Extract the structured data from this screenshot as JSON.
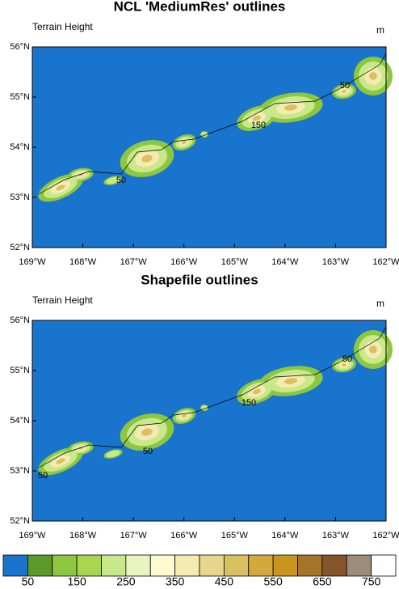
{
  "panels": [
    {
      "title": "NCL 'MediumRes' outlines",
      "left_label": "Terrain Height",
      "right_label": "m",
      "y_labels": [
        "56°N",
        "55°N",
        "54°N",
        "53°N",
        "52°N"
      ],
      "x_labels": [
        "169°W",
        "168°W",
        "167°W",
        "166°W",
        "165°W",
        "164°W",
        "163°W",
        "162°W"
      ],
      "contour_labels": [
        "50",
        "150",
        "50"
      ]
    },
    {
      "title": "Shapefile outlines",
      "left_label": "Terrain Height",
      "right_label": "m",
      "y_labels": [
        "56°N",
        "55°N",
        "54°N",
        "53°N",
        "52°N"
      ],
      "x_labels": [
        "169°W",
        "168°W",
        "167°W",
        "166°W",
        "165°W",
        "164°W",
        "163°W",
        "162°W"
      ],
      "contour_labels": [
        "50",
        "150",
        "50",
        "50"
      ]
    }
  ],
  "colorbar": {
    "labels": [
      "50",
      "150",
      "250",
      "350",
      "450",
      "550",
      "650",
      "750"
    ],
    "colors": [
      "#1874cd",
      "#5a9a2a",
      "#8dc63f",
      "#a8d64e",
      "#c8e88a",
      "#e9f5c0",
      "#fffbd0",
      "#f5eab0",
      "#e8d68a",
      "#d9c060",
      "#d4a83a",
      "#c8961e",
      "#a5742a",
      "#855428",
      "#9e8c7a",
      "#ffffff"
    ]
  }
}
